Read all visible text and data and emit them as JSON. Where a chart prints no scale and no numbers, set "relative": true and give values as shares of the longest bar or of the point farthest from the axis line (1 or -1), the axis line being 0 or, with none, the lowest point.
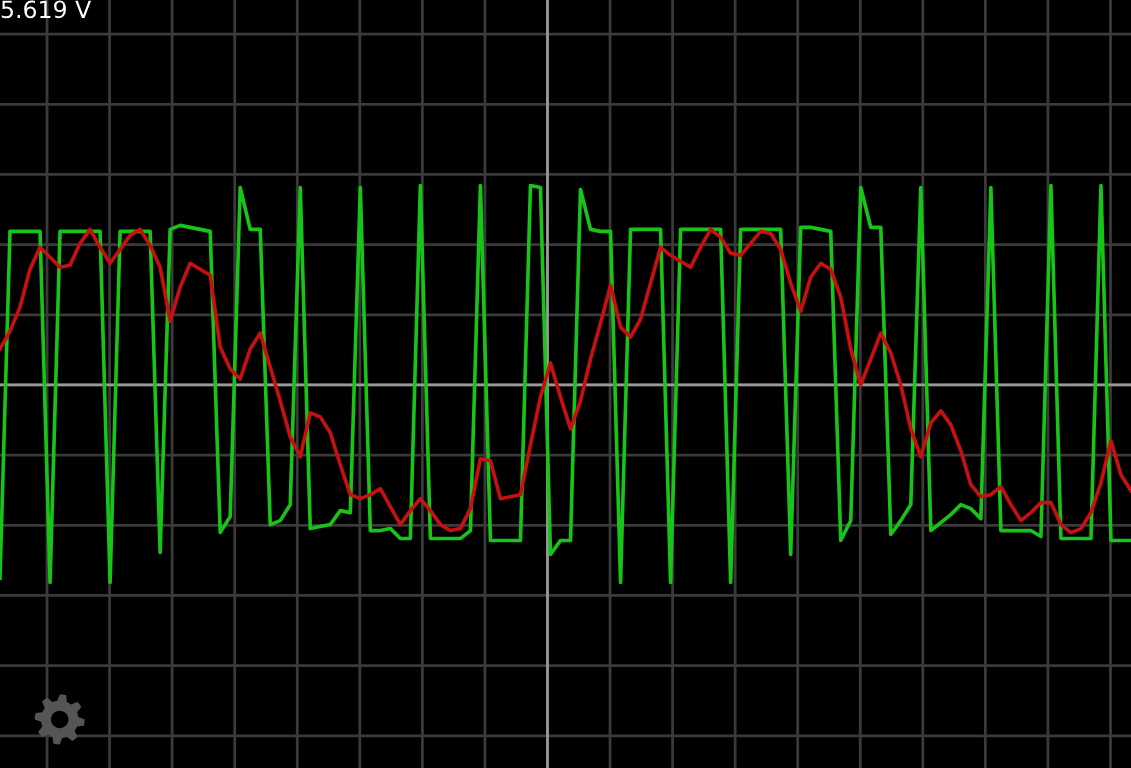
{
  "chart_data": {
    "type": "line",
    "relative": true,
    "grid": true,
    "legend": false,
    "marker": "none",
    "line_style": "solid",
    "annotations": [
      "5.619 V"
    ],
    "categories": [
      null,
      null,
      null,
      null,
      null,
      null,
      null,
      null,
      null,
      null,
      null,
      null,
      null,
      null,
      null,
      null,
      null,
      null,
      null,
      null,
      null,
      null,
      null,
      null,
      null,
      null,
      null,
      null,
      null,
      null,
      null,
      null,
      null,
      null,
      null,
      null,
      null,
      null,
      null,
      null,
      null,
      null,
      null,
      null,
      null,
      null,
      null,
      null,
      null,
      null,
      null,
      null,
      null,
      null,
      null,
      null,
      null,
      null,
      null,
      null,
      null,
      null,
      null,
      null,
      null,
      null,
      null,
      null,
      null,
      null,
      null,
      null,
      null,
      null,
      null,
      null,
      null,
      null,
      null,
      null,
      null,
      null,
      null,
      null,
      null,
      null,
      null,
      null,
      null,
      null,
      null,
      null,
      null,
      null,
      null,
      null,
      null,
      null,
      null,
      null,
      null,
      null,
      null,
      null,
      null,
      null,
      null,
      null,
      null,
      null,
      null,
      null,
      null,
      null
    ],
    "series": [
      {
        "color": "#18c418",
        "values": [
          -0.97,
          0.77,
          0.77,
          0.77,
          0.77,
          -0.99,
          0.77,
          0.77,
          0.77,
          0.77,
          0.77,
          -0.99,
          0.77,
          0.77,
          0.77,
          0.77,
          -0.84,
          0.78,
          0.8,
          0.79,
          0.78,
          0.77,
          -0.74,
          -0.66,
          0.99,
          0.78,
          0.78,
          -0.7,
          -0.68,
          -0.6,
          0.99,
          -0.72,
          -0.71,
          -0.7,
          -0.63,
          -0.64,
          0.99,
          -0.73,
          -0.73,
          -0.72,
          -0.77,
          -0.77,
          1.0,
          -0.77,
          -0.77,
          -0.77,
          -0.77,
          -0.73,
          1.0,
          -0.78,
          -0.78,
          -0.78,
          -0.78,
          1.0,
          0.99,
          -0.85,
          -0.78,
          -0.78,
          0.98,
          0.78,
          0.77,
          0.77,
          -0.99,
          0.78,
          0.78,
          0.78,
          0.78,
          -0.99,
          0.78,
          0.78,
          0.78,
          0.78,
          0.78,
          -0.99,
          0.78,
          0.78,
          0.78,
          0.78,
          0.78,
          -0.85,
          0.79,
          0.79,
          0.78,
          0.77,
          -0.78,
          -0.68,
          0.99,
          0.79,
          0.79,
          -0.75,
          -0.68,
          -0.6,
          0.99,
          -0.73,
          -0.69,
          -0.65,
          -0.6,
          -0.62,
          -0.67,
          0.99,
          -0.73,
          -0.73,
          -0.73,
          -0.73,
          -0.76,
          1.0,
          -0.77,
          -0.77,
          -0.77,
          -0.77,
          1.0,
          -0.78,
          -0.78,
          -0.78
        ]
      },
      {
        "color": "#c81010",
        "values": [
          0.18,
          0.27,
          0.39,
          0.58,
          0.69,
          0.64,
          0.59,
          0.6,
          0.71,
          0.78,
          0.69,
          0.61,
          0.68,
          0.75,
          0.78,
          0.7,
          0.59,
          0.32,
          0.49,
          0.61,
          0.58,
          0.55,
          0.19,
          0.08,
          0.03,
          0.18,
          0.26,
          0.09,
          -0.08,
          -0.26,
          -0.36,
          -0.14,
          -0.16,
          -0.24,
          -0.4,
          -0.55,
          -0.57,
          -0.55,
          -0.52,
          -0.61,
          -0.7,
          -0.63,
          -0.57,
          -0.63,
          -0.7,
          -0.73,
          -0.72,
          -0.62,
          -0.37,
          -0.38,
          -0.57,
          -0.56,
          -0.55,
          -0.3,
          -0.06,
          0.11,
          -0.06,
          -0.22,
          -0.08,
          0.13,
          0.31,
          0.5,
          0.29,
          0.24,
          0.33,
          0.51,
          0.69,
          0.65,
          0.62,
          0.59,
          0.69,
          0.78,
          0.74,
          0.66,
          0.65,
          0.71,
          0.77,
          0.76,
          0.68,
          0.51,
          0.37,
          0.54,
          0.61,
          0.58,
          0.44,
          0.18,
          0.0,
          0.13,
          0.26,
          0.16,
          0.0,
          -0.22,
          -0.36,
          -0.19,
          -0.13,
          -0.2,
          -0.33,
          -0.5,
          -0.56,
          -0.55,
          -0.51,
          -0.6,
          -0.68,
          -0.64,
          -0.59,
          -0.59,
          -0.7,
          -0.74,
          -0.72,
          -0.64,
          -0.49,
          -0.28,
          -0.45,
          -0.53
        ]
      }
    ]
  }
}
